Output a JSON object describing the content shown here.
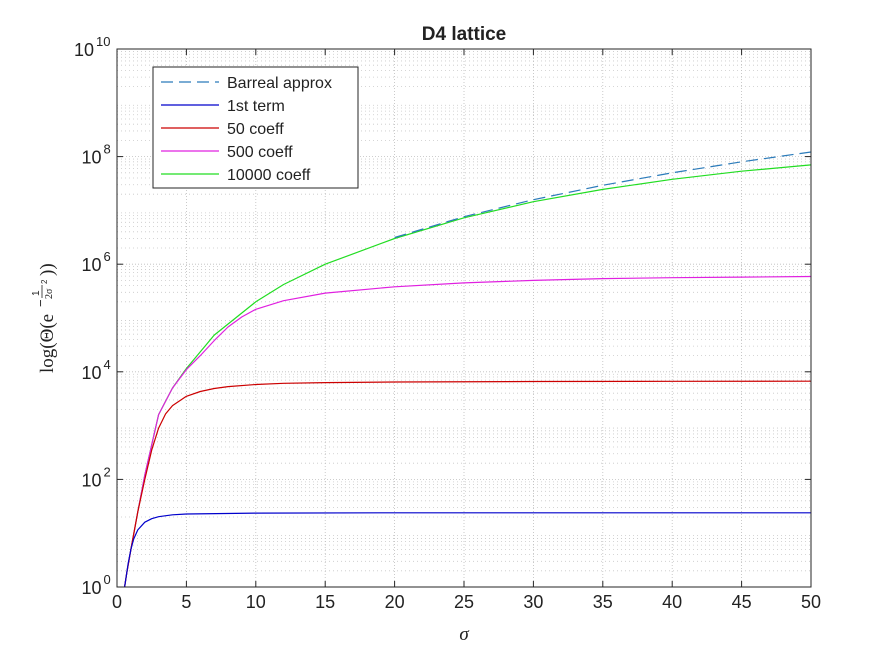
{
  "chart_data": {
    "type": "line",
    "title": "D4 lattice",
    "xlabel": "σ",
    "ylabel": "log(Θ(e^{-1/(2σ²)}))",
    "ylabel_parts": {
      "prefix": "log(Θ(e",
      "exponent_sign": "−",
      "exponent_num": "1",
      "exponent_den": "2σ",
      "exponent_den_power": "2",
      "suffix": "))"
    },
    "xlim": [
      0,
      50
    ],
    "ylim": [
      1,
      10000000000
    ],
    "yscale": "log",
    "grid": true,
    "minor_grid": true,
    "legend_position": "top-left",
    "xticks": [
      0,
      5,
      10,
      15,
      20,
      25,
      30,
      35,
      40,
      45,
      50
    ],
    "xtick_labels": [
      "0",
      "5",
      "10",
      "15",
      "20",
      "25",
      "30",
      "35",
      "40",
      "45",
      "50"
    ],
    "yticks": [
      {
        "value": 1,
        "base": "10",
        "exp": "0"
      },
      {
        "value": 100,
        "base": "10",
        "exp": "2"
      },
      {
        "value": 10000,
        "base": "10",
        "exp": "4"
      },
      {
        "value": 1000000,
        "base": "10",
        "exp": "6"
      },
      {
        "value": 100000000,
        "base": "10",
        "exp": "8"
      },
      {
        "value": 10000000000,
        "base": "10",
        "exp": "10"
      }
    ],
    "series": [
      {
        "name": "Barreal approx",
        "color": "#2b7bba",
        "style": "dashed",
        "x": [
          20,
          25,
          30,
          35,
          40,
          45,
          50
        ],
        "y": [
          3130000,
          7640000,
          15800000,
          29300000,
          50000000,
          80100000,
          122000000
        ]
      },
      {
        "name": "1st term",
        "color": "#0000cc",
        "style": "solid",
        "x": [
          0.55,
          0.7,
          0.8,
          1,
          1.2,
          1.5,
          2,
          2.5,
          3,
          4,
          5,
          10,
          20,
          30,
          40,
          50
        ],
        "y": [
          1,
          1.8,
          2.7,
          5,
          7.8,
          11.5,
          16,
          18.6,
          20.3,
          22,
          22.7,
          23.6,
          23.9,
          23.95,
          23.97,
          23.98
        ]
      },
      {
        "name": "50 coeff",
        "color": "#cc0000",
        "style": "solid",
        "x": [
          0.55,
          0.7,
          1,
          1.5,
          2,
          2.5,
          3,
          3.5,
          4,
          5,
          6,
          7,
          8,
          10,
          12,
          15,
          20,
          30,
          40,
          50
        ],
        "y": [
          1,
          1.8,
          5,
          25,
          100,
          350,
          900,
          1650,
          2350,
          3500,
          4300,
          4900,
          5300,
          5800,
          6100,
          6300,
          6450,
          6600,
          6650,
          6700
        ]
      },
      {
        "name": "500 coeff",
        "color": "#e020e0",
        "style": "solid",
        "x": [
          0.55,
          0.7,
          1,
          1.5,
          2,
          3,
          4,
          5,
          6,
          7,
          8,
          9,
          10,
          12,
          15,
          20,
          25,
          30,
          35,
          40,
          45,
          50
        ],
        "y": [
          1,
          1.8,
          5,
          25,
          120,
          1600,
          5000,
          11000,
          20000,
          38000,
          68000,
          105000,
          145000,
          210000,
          290000,
          380000,
          450000,
          500000,
          540000,
          560000,
          575000,
          590000
        ]
      },
      {
        "name": "10000 coeff",
        "color": "#22dd22",
        "style": "solid",
        "x": [
          0.55,
          0.7,
          1,
          1.5,
          2,
          3,
          4,
          5,
          7,
          10,
          12,
          15,
          20,
          25,
          30,
          35,
          40,
          45,
          50
        ],
        "y": [
          1,
          1.8,
          5,
          25,
          120,
          1600,
          5000,
          11500,
          48000,
          200000,
          420000,
          1000000,
          3000000,
          7300000,
          14500000,
          24600000,
          37900000,
          53500000,
          70000000
        ]
      }
    ]
  }
}
